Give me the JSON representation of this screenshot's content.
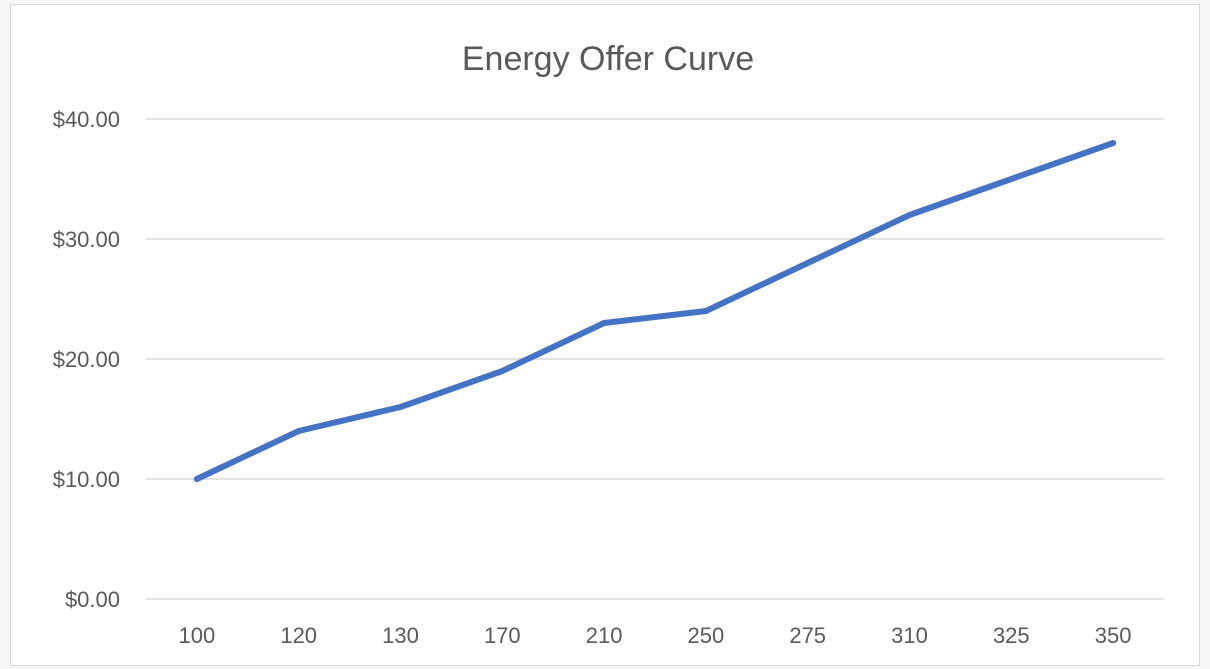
{
  "chart_data": {
    "type": "line",
    "title": "Energy Offer Curve",
    "xlabel": "",
    "ylabel": "",
    "categories": [
      "100",
      "120",
      "130",
      "170",
      "210",
      "250",
      "275",
      "310",
      "325",
      "350"
    ],
    "series": [
      {
        "values": [
          10,
          14,
          16,
          19,
          23,
          24,
          28,
          32,
          35,
          38
        ],
        "color": "#4472c4"
      }
    ],
    "ylim": [
      0,
      40
    ],
    "yticks": [
      0,
      10,
      20,
      30,
      40
    ],
    "ytick_labels": [
      "$0.00",
      "$10.00",
      "$20.00",
      "$30.00",
      "$40.00"
    ],
    "grid": true,
    "legend": "none"
  }
}
